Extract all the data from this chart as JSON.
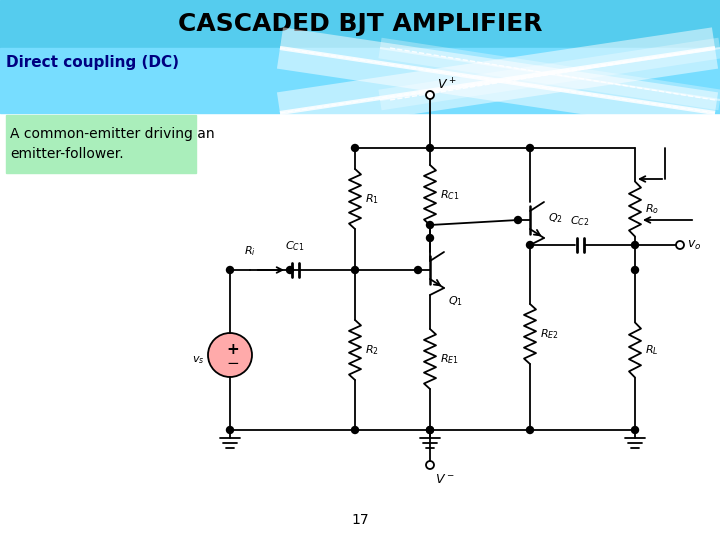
{
  "title": "CASCADED BJT AMPLIFIER",
  "title_bg": "#55CCEE",
  "title_color": "#000000",
  "title_fontsize": 18,
  "subtitle": "Direct coupling (DC)",
  "subtitle_color": "#000080",
  "subtitle_fontsize": 11,
  "desc_text": "A common-emitter driving an\nemitter-follower.",
  "desc_bg": "#AAEEBB",
  "desc_fontsize": 10,
  "page_num": "17",
  "bg_color": "#FFFFFF",
  "circuit_color": "#000000",
  "vs_fill": "#FFAAAA",
  "banner_bg": "#77DDFF"
}
